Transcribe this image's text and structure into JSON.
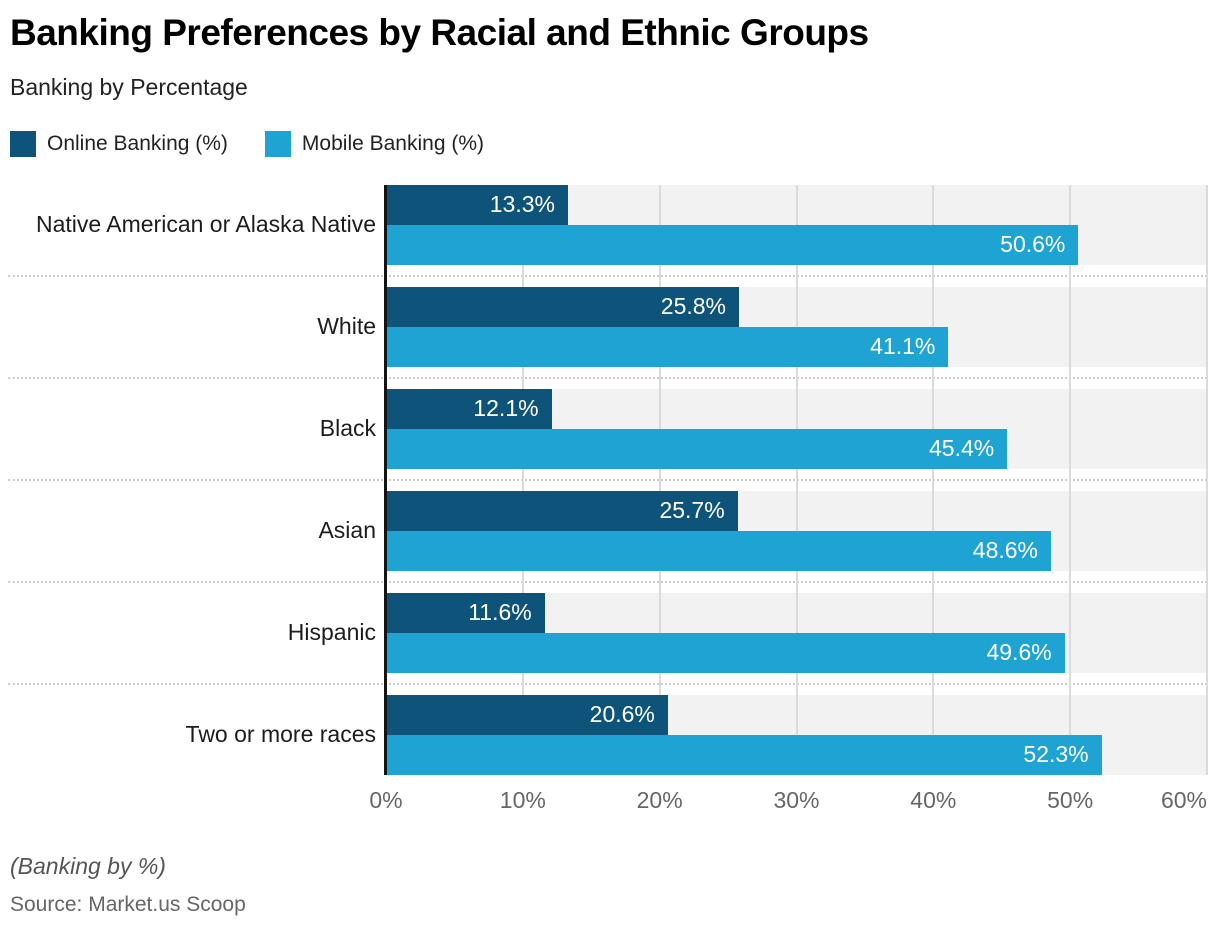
{
  "header": {
    "title": "Banking Preferences by Racial and Ethnic Groups",
    "subtitle": "Banking by Percentage"
  },
  "chart_data": {
    "type": "bar",
    "orientation": "horizontal",
    "title": "Banking Preferences by Racial and Ethnic Groups",
    "subtitle": "Banking by Percentage",
    "categories": [
      "Native American or Alaska Native",
      "White",
      "Black",
      "Asian",
      "Hispanic",
      "Two or more races"
    ],
    "series": [
      {
        "name": "Online Banking (%)",
        "color": "#0E5379",
        "values": [
          13.3,
          25.8,
          12.1,
          25.7,
          11.6,
          20.6
        ]
      },
      {
        "name": "Mobile Banking (%)",
        "color": "#1EA3D2",
        "values": [
          50.6,
          41.1,
          45.4,
          48.6,
          49.6,
          52.3
        ]
      }
    ],
    "value_suffix": "%",
    "x_ticks": [
      "0%",
      "10%",
      "20%",
      "30%",
      "40%",
      "50%",
      "60%"
    ],
    "xlim": [
      0,
      60
    ],
    "xlabel": "",
    "ylabel": "",
    "grid": "vertical",
    "legend_position": "top-left",
    "colors": {
      "row_band": "#f2f2f2",
      "gridline": "#dbdbdb",
      "axis": "#141414",
      "bar_label": "#ffffff"
    }
  },
  "footer": {
    "note": "(Banking by %)",
    "source": "Source: Market.us Scoop"
  }
}
